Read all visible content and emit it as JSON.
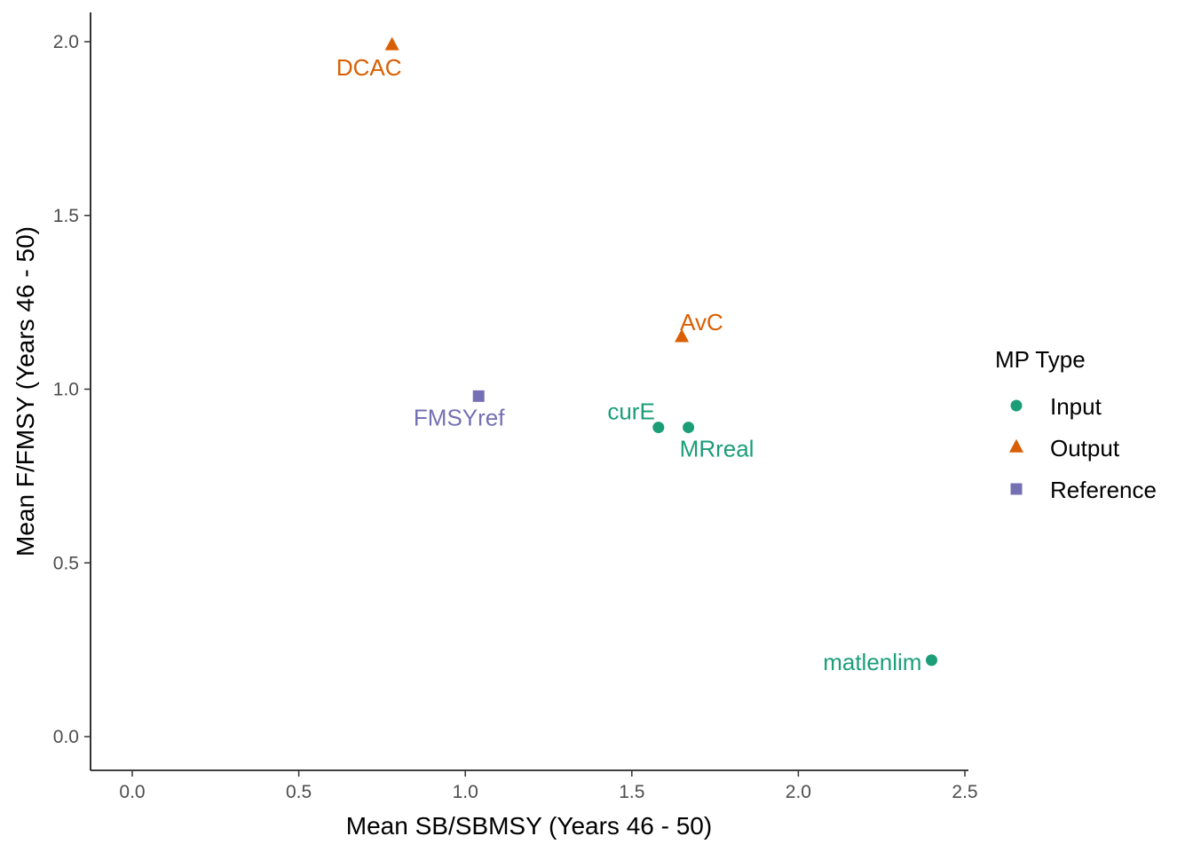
{
  "chart_data": {
    "type": "scatter",
    "xlabel": "Mean SB/SBMSY (Years 46 - 50)",
    "ylabel": "Mean F/FMSY (Years 46 - 50)",
    "xlim": [
      0.0,
      2.5
    ],
    "ylim": [
      0.0,
      2.0
    ],
    "x_ticks": [
      "0.0",
      "0.5",
      "1.0",
      "1.5",
      "2.0",
      "2.5"
    ],
    "y_ticks": [
      "0.0",
      "0.5",
      "1.0",
      "1.5",
      "2.0"
    ],
    "grid": false,
    "legend": {
      "title": "MP Type",
      "placement": "right",
      "entries": [
        {
          "label": "Input",
          "shape": "circle",
          "color": "#1B9E77"
        },
        {
          "label": "Output",
          "shape": "triangle",
          "color": "#D95F02"
        },
        {
          "label": "Reference",
          "shape": "square",
          "color": "#7570B3"
        }
      ]
    },
    "points": [
      {
        "label": "DCAC",
        "type": "Output",
        "x": 0.78,
        "y": 1.99,
        "label_anchor": "below"
      },
      {
        "label": "AvC",
        "type": "Output",
        "x": 1.65,
        "y": 1.15,
        "label_anchor": "above-right"
      },
      {
        "label": "FMSYref",
        "type": "Reference",
        "x": 1.04,
        "y": 0.98,
        "label_anchor": "below-left"
      },
      {
        "label": "curE",
        "type": "Input",
        "x": 1.58,
        "y": 0.89,
        "label_anchor": "above-left"
      },
      {
        "label": "MRreal",
        "type": "Input",
        "x": 1.67,
        "y": 0.89,
        "label_anchor": "below-right"
      },
      {
        "label": "matlenlim",
        "type": "Input",
        "x": 2.4,
        "y": 0.22,
        "label_anchor": "left"
      }
    ]
  }
}
